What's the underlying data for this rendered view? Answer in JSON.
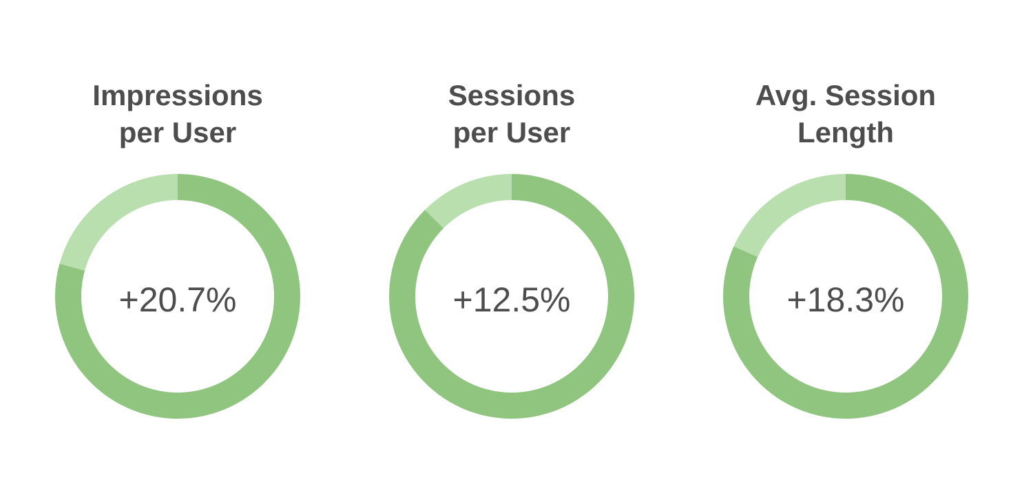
{
  "chart_data": [
    {
      "type": "pie",
      "title_lines": [
        "Impressions",
        "per User"
      ],
      "value_label": "+20.7%",
      "values": [
        79.3,
        20.7
      ],
      "colors": [
        "#90c57f",
        "#badfaf"
      ]
    },
    {
      "type": "pie",
      "title_lines": [
        "Sessions",
        "per User"
      ],
      "value_label": "+12.5%",
      "values": [
        87.5,
        12.5
      ],
      "colors": [
        "#90c57f",
        "#badfaf"
      ]
    },
    {
      "type": "pie",
      "title_lines": [
        "Avg. Session",
        "Length"
      ],
      "value_label": "+18.3%",
      "values": [
        81.7,
        18.3
      ],
      "colors": [
        "#90c57f",
        "#badfaf"
      ]
    }
  ]
}
